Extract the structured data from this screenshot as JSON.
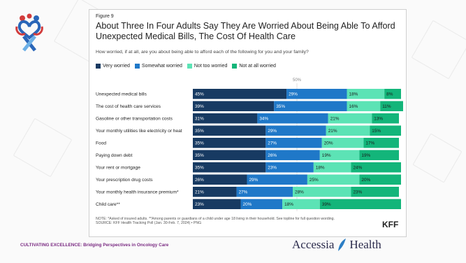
{
  "figure_label": "Figure 9",
  "footer": {
    "event": "CULTIVATING EXCELLENCE: Bridging Perspectives in Oncology Care",
    "brand_part1": "Accessia",
    "brand_part2": "Health"
  },
  "kff_logo": "KFF",
  "note_line1": "NOTE: *Asked of insured adults. **Among parents or guardians of a child under age 18 living in their household. See topline for full question wording.",
  "note_line2": "SOURCE: KFF Health Tracking Poll (Jan. 30-Feb. 7, 2024) • PNG",
  "colors": {
    "very": "#173a62",
    "somewhat": "#1f78c8",
    "nottoo": "#5ce3b5",
    "notatall": "#13b57a",
    "footer_accent": "#7a2a82"
  },
  "chart_data": {
    "type": "bar",
    "stacked": true,
    "orientation": "horizontal",
    "title": "About Three In Four Adults Say They Are Worried About Being Able To Afford Unexpected Medical Bills, The Cost Of Health Care",
    "subtitle": "How worried, if at all, are you about being able to afford each of the following for you and your family?",
    "reference_label": "50%",
    "categories": [
      "Unexpected medical bills",
      "The cost of health care services",
      "Gasoline or other transportation costs",
      "Your monthly utilities like electricity or heat",
      "Food",
      "Paying down debt",
      "Your rent or mortgage",
      "Your prescription drug costs",
      "Your monthly health insurance premium*",
      "Child care**"
    ],
    "series": [
      {
        "name": "Very worried",
        "values": [
          45,
          39,
          31,
          35,
          35,
          35,
          35,
          26,
          21,
          23
        ]
      },
      {
        "name": "Somewhat worried",
        "values": [
          29,
          35,
          34,
          29,
          27,
          26,
          23,
          29,
          27,
          20
        ]
      },
      {
        "name": "Not too worried",
        "values": [
          18,
          16,
          21,
          21,
          20,
          19,
          18,
          25,
          28,
          18
        ]
      },
      {
        "name": "Not at all worried",
        "values": [
          8,
          11,
          13,
          15,
          17,
          19,
          24,
          20,
          23,
          39
        ]
      }
    ],
    "xlim": [
      0,
      100
    ],
    "legend_position": "top-left"
  }
}
